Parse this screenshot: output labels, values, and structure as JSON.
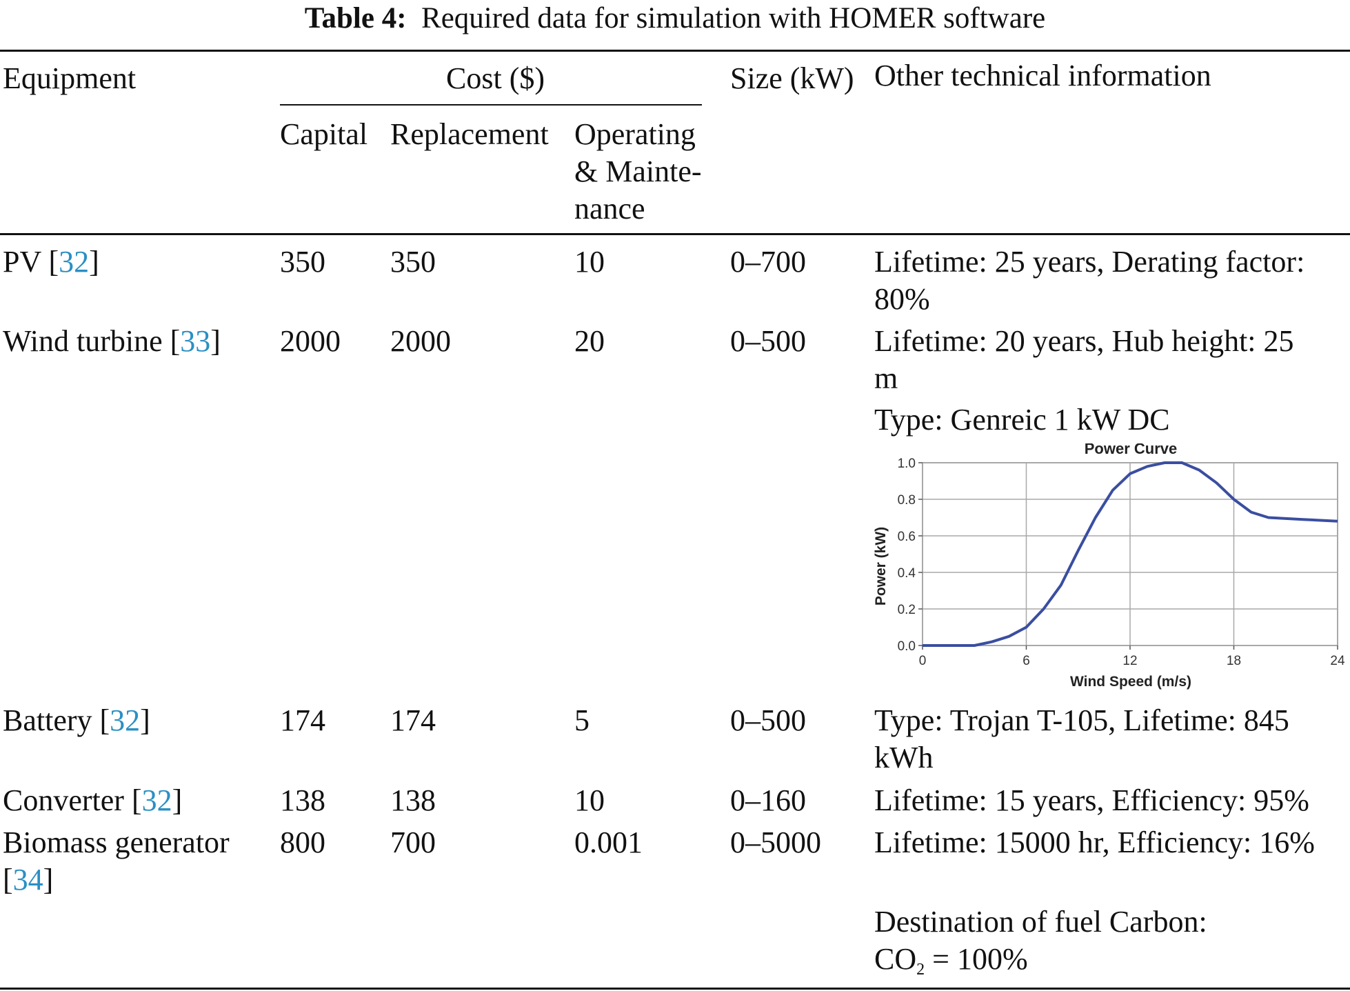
{
  "caption": {
    "label": "Table 4:",
    "text": "Required data for simulation with HOMER software"
  },
  "headers": {
    "equipment": "Equipment",
    "cost": "Cost ($)",
    "capital": "Capital",
    "replacement": "Replacement",
    "operating_l1": "Operating",
    "operating_l2": "& Mainte-",
    "operating_l3": "nance",
    "size": "Size (kW)",
    "other": "Other technical information"
  },
  "rows": [
    {
      "name": "PV",
      "ref": "32",
      "capital": "350",
      "replacement": "350",
      "om": "10",
      "size": "0–700",
      "info": [
        "Lifetime: 25 years, Derating factor:",
        "80%"
      ]
    },
    {
      "name": "Wind turbine",
      "ref": "33",
      "capital": "2000",
      "replacement": "2000",
      "om": "20",
      "size": "0–500",
      "info": [
        "Lifetime: 20 years, Hub height: 25",
        "m",
        "Type: Genreic 1 kW DC"
      ]
    },
    {
      "name": "Battery",
      "ref": "32",
      "capital": "174",
      "replacement": "174",
      "om": "5",
      "size": "0–500",
      "info": [
        "Type: Trojan T-105, Lifetime: 845",
        "kWh"
      ]
    },
    {
      "name": "Converter",
      "ref": "32",
      "capital": "138",
      "replacement": "138",
      "om": "10",
      "size": "0–160",
      "info": [
        "Lifetime: 15 years, Efficiency: 95%"
      ]
    },
    {
      "name": "Biomass generator",
      "ref": "34",
      "capital": "800",
      "replacement": "700",
      "om": "0.001",
      "size": "0–5000",
      "info": [
        "Lifetime: 15000 hr, Efficiency: 16%",
        "Destination of fuel Carbon:",
        "CO",
        "2",
        " = 100%"
      ]
    }
  ],
  "chart_data": {
    "type": "line",
    "title": "Power Curve",
    "xlabel": "Wind Speed (m/s)",
    "ylabel": "Power (kW)",
    "xlim": [
      0,
      24
    ],
    "ylim": [
      0,
      1.0
    ],
    "xticks": [
      "0",
      "6",
      "12",
      "18",
      "24"
    ],
    "yticks": [
      "0.0",
      "0.2",
      "0.4",
      "0.6",
      "0.8",
      "1.0"
    ],
    "grid": true,
    "series_color": "#3a4ea0",
    "x": [
      0,
      1,
      2,
      3,
      4,
      5,
      6,
      7,
      8,
      9,
      10,
      11,
      12,
      13,
      14,
      15,
      16,
      17,
      18,
      19,
      20,
      22,
      24
    ],
    "y": [
      0,
      0,
      0,
      0,
      0.02,
      0.05,
      0.1,
      0.2,
      0.33,
      0.52,
      0.7,
      0.85,
      0.94,
      0.98,
      1.0,
      1.0,
      0.96,
      0.89,
      0.8,
      0.73,
      0.7,
      0.69,
      0.68
    ]
  }
}
